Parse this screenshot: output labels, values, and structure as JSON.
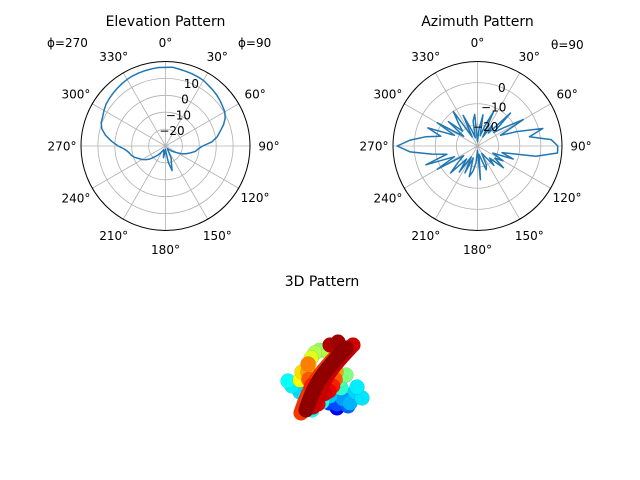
{
  "chart_data": [
    {
      "type": "line",
      "projection": "polar",
      "title": "Elevation Pattern",
      "theta_zero": "top",
      "theta_direction": "clockwise",
      "theta_ticks_deg": [
        0,
        30,
        60,
        90,
        120,
        150,
        180,
        210,
        240,
        270,
        300,
        330
      ],
      "theta_tick_labels": [
        "0°",
        "30°",
        "60°",
        "90°",
        "120°",
        "150°",
        "180°",
        "210°",
        "240°",
        "270°",
        "300°",
        "330°"
      ],
      "r_ticks": [
        -20,
        -10,
        0,
        10
      ],
      "r_tick_labels": [
        "−20",
        "−10",
        "0",
        "10"
      ],
      "rlim": [
        -30,
        20
      ],
      "annotations": [
        "ϕ=270",
        "ϕ=90"
      ],
      "grid": true,
      "series": [
        {
          "theta_deg": [
            0,
            5,
            10,
            15,
            20,
            25,
            30,
            35,
            40,
            45,
            50,
            55,
            60,
            65,
            70,
            75,
            80,
            85,
            90,
            95,
            100,
            105,
            110,
            115,
            120,
            125,
            130,
            135,
            140,
            145,
            150,
            155,
            160,
            165,
            170,
            175,
            180,
            185,
            190,
            195,
            200,
            205,
            210,
            215,
            220,
            225,
            230,
            235,
            240,
            245,
            250,
            255,
            260,
            265,
            270,
            275,
            280,
            285,
            290,
            295,
            300,
            305,
            310,
            315,
            320,
            325,
            330,
            335,
            340,
            345,
            350,
            355
          ],
          "values": [
            16.5,
            16.8,
            16.2,
            15.8,
            15.5,
            15.2,
            14.8,
            14.0,
            13.4,
            12.8,
            12.0,
            11.2,
            10.5,
            9.0,
            6.5,
            3.5,
            1.0,
            -2.5,
            -8.0,
            -10.5,
            -12.0,
            -14.5,
            -16.8,
            -19.0,
            -22.0,
            -24.0,
            -25.5,
            -27.0,
            -27.5,
            -28.0,
            -27.0,
            -22.0,
            -20.0,
            -15.0,
            -20.0,
            -26.0,
            -28.0,
            -26.0,
            -23.0,
            -26.0,
            -27.0,
            -27.5,
            -27.0,
            -25.0,
            -23.0,
            -21.0,
            -18.0,
            -16.0,
            -14.0,
            -12.5,
            -10.5,
            -9.0,
            -8.0,
            -6.0,
            -2.0,
            2.0,
            6.0,
            9.0,
            10.5,
            11.0,
            12.0,
            13.0,
            13.5,
            14.0,
            14.5,
            15.0,
            15.5,
            15.8,
            16.0,
            16.2,
            16.4,
            16.6
          ]
        }
      ]
    },
    {
      "type": "line",
      "projection": "polar",
      "title": "Azimuth Pattern",
      "theta_zero": "top",
      "theta_direction": "clockwise",
      "theta_ticks_deg": [
        0,
        30,
        60,
        90,
        120,
        150,
        180,
        210,
        240,
        270,
        300,
        330
      ],
      "theta_tick_labels": [
        "0°",
        "30°",
        "60°",
        "90°",
        "120°",
        "150°",
        "180°",
        "210°",
        "240°",
        "270°",
        "300°",
        "330°"
      ],
      "r_ticks": [
        -20,
        -10,
        0
      ],
      "r_tick_labels": [
        "−20",
        "−10",
        "0"
      ],
      "rlim": [
        -30,
        10
      ],
      "annotations": [
        "θ=90"
      ],
      "grid": true,
      "series": [
        {
          "theta_deg": [
            0,
            5,
            10,
            15,
            20,
            25,
            30,
            35,
            40,
            45,
            50,
            55,
            60,
            65,
            70,
            75,
            80,
            85,
            90,
            95,
            100,
            105,
            110,
            115,
            120,
            125,
            130,
            135,
            140,
            145,
            150,
            155,
            160,
            165,
            170,
            175,
            180,
            185,
            190,
            195,
            200,
            205,
            210,
            215,
            220,
            225,
            230,
            235,
            240,
            245,
            250,
            255,
            260,
            265,
            270,
            275,
            280,
            285,
            290,
            295,
            300,
            305,
            310,
            315,
            320,
            325,
            330,
            335,
            340,
            345,
            350,
            355
          ],
          "values": [
            -28,
            -22,
            -15,
            -25,
            -20,
            -12,
            -25,
            -18,
            -22,
            -8,
            -20,
            -15,
            -5,
            -18,
            -10,
            2,
            -5,
            5,
            8,
            8,
            -2,
            -18,
            -12,
            -22,
            -16,
            -20,
            -14,
            -22,
            -18,
            -24,
            -26,
            -20,
            -18,
            -24,
            -26,
            -14,
            -28,
            -22,
            -18,
            -15,
            -24,
            -16,
            -24,
            -15,
            -22,
            -12,
            -18,
            -22,
            -8,
            -18,
            -4,
            -15,
            -8,
            2,
            8,
            2,
            -5,
            -12,
            -5,
            -18,
            -8,
            -22,
            -12,
            -20,
            -16,
            -10,
            -25,
            -14,
            -22,
            -26,
            -18,
            -15
          ]
        }
      ]
    },
    {
      "type": "scatter",
      "projection": "3d",
      "title": "3D Pattern",
      "colormap": "jet",
      "axes_visible": false
    }
  ]
}
